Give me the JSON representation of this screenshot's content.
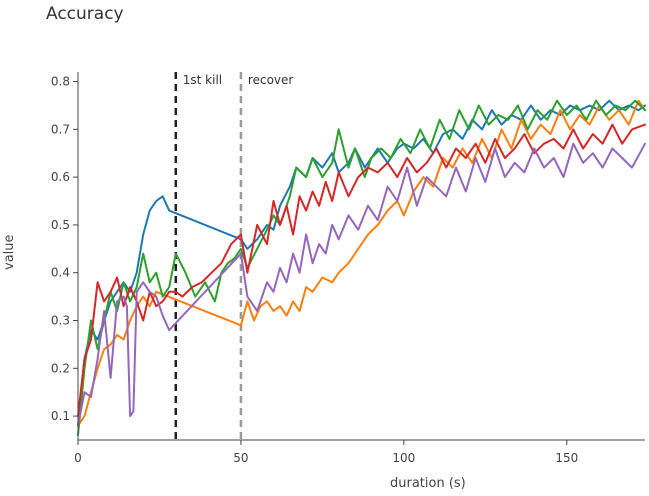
{
  "chart_data": {
    "type": "line",
    "title": "Accuracy",
    "xlabel": "duration (s)",
    "ylabel": "value",
    "xlim": [
      0,
      174
    ],
    "ylim": [
      0.05,
      0.82
    ],
    "x_ticks": [
      0,
      50,
      100,
      150
    ],
    "y_ticks": [
      0.1,
      0.2,
      0.3,
      0.4,
      0.5,
      0.6,
      0.7,
      0.8
    ],
    "y_tick_labels": [
      "0.1",
      "0.2",
      "0.3",
      "0.4",
      "0.5",
      "0.6",
      "0.7",
      "0.8"
    ],
    "annotations": [
      {
        "label": "1st kill",
        "x": 30,
        "color": "#222222",
        "dash": true
      },
      {
        "label": "recover",
        "x": 50,
        "color": "#999999",
        "dash": true
      }
    ],
    "series": [
      {
        "color": "#1f77b4",
        "x": [
          0,
          2,
          4,
          6,
          8,
          10,
          12,
          14,
          16,
          18,
          20,
          22,
          24,
          26,
          28,
          50,
          52,
          55,
          58,
          60,
          62,
          65,
          67,
          70,
          72,
          75,
          78,
          80,
          83,
          85,
          88,
          90,
          92,
          95,
          98,
          100,
          103,
          106,
          109,
          112,
          115,
          118,
          121,
          124,
          127,
          130,
          133,
          136,
          139,
          142,
          145,
          148,
          151,
          154,
          157,
          160,
          163,
          166,
          169,
          172,
          174
        ],
        "y": [
          0.08,
          0.22,
          0.28,
          0.26,
          0.3,
          0.34,
          0.36,
          0.38,
          0.36,
          0.4,
          0.48,
          0.53,
          0.55,
          0.56,
          0.53,
          0.47,
          0.45,
          0.47,
          0.5,
          0.49,
          0.54,
          0.58,
          0.62,
          0.6,
          0.64,
          0.62,
          0.65,
          0.61,
          0.63,
          0.66,
          0.62,
          0.64,
          0.66,
          0.63,
          0.66,
          0.67,
          0.66,
          0.68,
          0.65,
          0.69,
          0.7,
          0.68,
          0.72,
          0.7,
          0.74,
          0.71,
          0.73,
          0.72,
          0.75,
          0.72,
          0.74,
          0.73,
          0.75,
          0.74,
          0.75,
          0.74,
          0.76,
          0.74,
          0.75,
          0.74,
          0.75
        ]
      },
      {
        "color": "#ff7f0e",
        "x": [
          0,
          2,
          4,
          6,
          8,
          10,
          12,
          14,
          16,
          18,
          20,
          22,
          24,
          50,
          52,
          54,
          56,
          58,
          60,
          62,
          64,
          66,
          68,
          70,
          72,
          75,
          78,
          80,
          83,
          86,
          89,
          92,
          95,
          98,
          100,
          103,
          106,
          109,
          112,
          115,
          118,
          121,
          124,
          127,
          130,
          133,
          136,
          139,
          142,
          145,
          148,
          151,
          154,
          157,
          160,
          163,
          166,
          169,
          172,
          174
        ],
        "y": [
          0.08,
          0.1,
          0.15,
          0.2,
          0.24,
          0.25,
          0.27,
          0.26,
          0.3,
          0.33,
          0.35,
          0.33,
          0.36,
          0.29,
          0.34,
          0.3,
          0.33,
          0.34,
          0.32,
          0.33,
          0.31,
          0.34,
          0.32,
          0.37,
          0.36,
          0.39,
          0.38,
          0.4,
          0.42,
          0.45,
          0.48,
          0.5,
          0.53,
          0.55,
          0.52,
          0.57,
          0.6,
          0.58,
          0.64,
          0.62,
          0.66,
          0.63,
          0.68,
          0.64,
          0.7,
          0.66,
          0.72,
          0.68,
          0.71,
          0.69,
          0.74,
          0.7,
          0.73,
          0.71,
          0.75,
          0.72,
          0.74,
          0.71,
          0.76,
          0.74
        ]
      },
      {
        "color": "#2ca02c",
        "x": [
          0,
          2,
          4,
          6,
          8,
          10,
          12,
          14,
          16,
          18,
          20,
          22,
          24,
          26,
          28,
          30,
          33,
          36,
          39,
          42,
          44,
          46,
          48,
          50,
          52,
          55,
          58,
          60,
          62,
          65,
          67,
          70,
          72,
          75,
          78,
          80,
          83,
          85,
          88,
          90,
          93,
          96,
          99,
          102,
          105,
          108,
          111,
          114,
          117,
          120,
          123,
          126,
          129,
          132,
          135,
          138,
          141,
          144,
          147,
          150,
          153,
          156,
          159,
          162,
          165,
          168,
          171,
          174
        ],
        "y": [
          0.06,
          0.2,
          0.3,
          0.24,
          0.3,
          0.36,
          0.32,
          0.38,
          0.34,
          0.37,
          0.44,
          0.38,
          0.4,
          0.35,
          0.37,
          0.44,
          0.4,
          0.35,
          0.38,
          0.34,
          0.4,
          0.42,
          0.43,
          0.45,
          0.41,
          0.45,
          0.49,
          0.52,
          0.5,
          0.56,
          0.62,
          0.6,
          0.64,
          0.6,
          0.63,
          0.7,
          0.62,
          0.66,
          0.6,
          0.64,
          0.66,
          0.64,
          0.68,
          0.65,
          0.7,
          0.66,
          0.72,
          0.68,
          0.74,
          0.7,
          0.75,
          0.71,
          0.73,
          0.72,
          0.75,
          0.7,
          0.74,
          0.72,
          0.76,
          0.73,
          0.75,
          0.72,
          0.76,
          0.73,
          0.75,
          0.74,
          0.76,
          0.74
        ]
      },
      {
        "color": "#d62728",
        "x": [
          0,
          2,
          4,
          6,
          8,
          10,
          12,
          14,
          16,
          18,
          20,
          22,
          24,
          26,
          28,
          30,
          32,
          35,
          38,
          41,
          44,
          47,
          50,
          52,
          55,
          58,
          60,
          62,
          64,
          66,
          68,
          70,
          72,
          74,
          76,
          78,
          80,
          83,
          86,
          89,
          92,
          95,
          98,
          101,
          104,
          107,
          110,
          113,
          116,
          119,
          122,
          125,
          128,
          131,
          134,
          137,
          140,
          143,
          146,
          149,
          152,
          155,
          158,
          161,
          164,
          167,
          170,
          174
        ],
        "y": [
          0.1,
          0.22,
          0.26,
          0.38,
          0.34,
          0.36,
          0.39,
          0.33,
          0.37,
          0.34,
          0.3,
          0.36,
          0.33,
          0.34,
          0.36,
          0.36,
          0.35,
          0.37,
          0.38,
          0.4,
          0.42,
          0.46,
          0.48,
          0.4,
          0.5,
          0.46,
          0.55,
          0.5,
          0.54,
          0.48,
          0.56,
          0.53,
          0.57,
          0.54,
          0.59,
          0.55,
          0.61,
          0.56,
          0.6,
          0.62,
          0.61,
          0.63,
          0.6,
          0.64,
          0.61,
          0.63,
          0.66,
          0.62,
          0.66,
          0.64,
          0.67,
          0.63,
          0.68,
          0.64,
          0.66,
          0.69,
          0.65,
          0.67,
          0.68,
          0.66,
          0.7,
          0.66,
          0.69,
          0.67,
          0.71,
          0.67,
          0.7,
          0.71
        ]
      },
      {
        "color": "#9467bd",
        "x": [
          0,
          2,
          4,
          6,
          8,
          10,
          12,
          14,
          15,
          16,
          17,
          18,
          20,
          22,
          24,
          26,
          28,
          50,
          52,
          55,
          58,
          60,
          62,
          64,
          66,
          68,
          70,
          72,
          74,
          76,
          78,
          80,
          83,
          86,
          89,
          92,
          95,
          98,
          101,
          104,
          107,
          110,
          113,
          116,
          119,
          122,
          125,
          128,
          131,
          134,
          137,
          140,
          143,
          146,
          149,
          152,
          155,
          158,
          161,
          164,
          167,
          170,
          174
        ],
        "y": [
          0.08,
          0.15,
          0.14,
          0.22,
          0.32,
          0.18,
          0.34,
          0.35,
          0.33,
          0.1,
          0.11,
          0.36,
          0.38,
          0.36,
          0.35,
          0.31,
          0.28,
          0.44,
          0.35,
          0.32,
          0.38,
          0.36,
          0.41,
          0.38,
          0.44,
          0.4,
          0.48,
          0.42,
          0.46,
          0.44,
          0.5,
          0.47,
          0.52,
          0.49,
          0.54,
          0.51,
          0.58,
          0.55,
          0.62,
          0.54,
          0.6,
          0.58,
          0.56,
          0.62,
          0.57,
          0.64,
          0.59,
          0.66,
          0.6,
          0.63,
          0.61,
          0.66,
          0.62,
          0.64,
          0.6,
          0.67,
          0.63,
          0.65,
          0.62,
          0.66,
          0.64,
          0.62,
          0.67
        ]
      }
    ]
  }
}
